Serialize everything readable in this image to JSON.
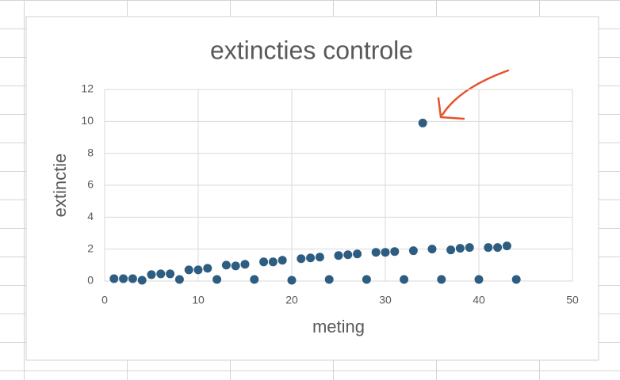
{
  "chart_data": {
    "type": "scatter",
    "title": "extincties controle",
    "x_label": "meting",
    "y_label": "extinctie",
    "series": [
      {
        "color": "#2d5d80",
        "x": [
          1,
          2,
          3,
          4,
          5,
          6,
          7,
          8,
          9,
          10,
          11,
          12,
          13,
          14,
          15,
          16,
          17,
          18,
          19,
          20,
          21,
          22,
          23,
          24,
          25,
          26,
          27,
          28,
          29,
          30,
          31,
          32,
          33,
          34,
          35,
          36,
          37,
          38,
          39,
          40,
          41,
          42,
          43,
          44
        ],
        "values": [
          0.15,
          0.15,
          0.15,
          0.05,
          0.4,
          0.45,
          0.45,
          0.1,
          0.7,
          0.7,
          0.8,
          0.1,
          1.0,
          0.95,
          1.05,
          0.1,
          1.2,
          1.2,
          1.3,
          0.05,
          1.4,
          1.45,
          1.5,
          0.1,
          1.6,
          1.65,
          1.7,
          0.1,
          1.8,
          1.8,
          1.85,
          0.1,
          1.9,
          9.9,
          2.0,
          0.1,
          1.95,
          2.05,
          2.1,
          0.1,
          2.1,
          2.1,
          2.2,
          0.1
        ]
      }
    ],
    "xlim": [
      0,
      50
    ],
    "xticks": [
      0,
      10,
      20,
      30,
      40,
      50
    ],
    "ylim": [
      0,
      12
    ],
    "yticks": [
      0,
      2,
      4,
      6,
      8,
      10,
      12
    ],
    "grid": true
  }
}
